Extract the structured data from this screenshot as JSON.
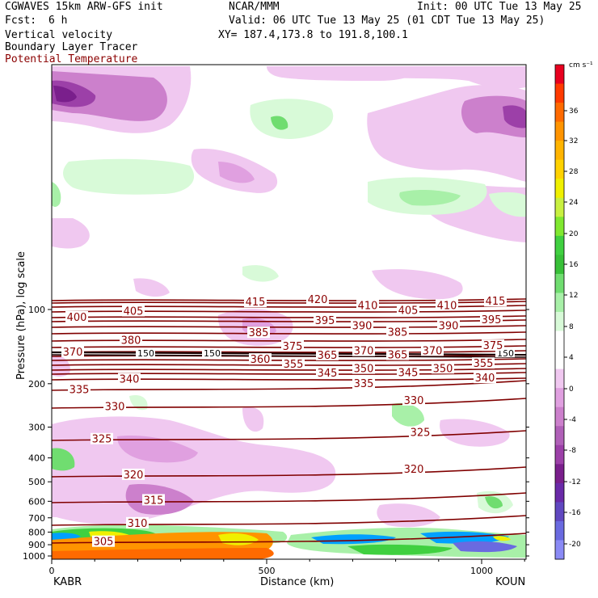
{
  "header": {
    "model": "CGWAVES 15km ARW-GFS init",
    "org": "NCAR/MMM",
    "init": "Init: 00 UTC Tue 13 May 25",
    "fcst_label": "Fcst:",
    "fcst_value": "6 h",
    "valid": "Valid: 06 UTC Tue 13 May 25 (01 CDT Tue 13 May 25)",
    "field1": "Vertical velocity",
    "field2": "Boundary Layer Tracer",
    "field3": "Potential Temperature",
    "xy": "XY= 187.4,173.8 to 191.8,100.1"
  },
  "colors": {
    "theta": "#800000",
    "dark_theta": "#1a0000"
  },
  "chart_data": {
    "type": "contour-cross-section",
    "ylabel": "Pressure (hPa), log scale",
    "xlabel": "Distance (km)",
    "x_ticks": [
      0,
      500,
      1000
    ],
    "xlim": [
      0,
      1110
    ],
    "y_ticks": [
      100,
      200,
      300,
      400,
      500,
      600,
      700,
      800,
      900,
      1000
    ],
    "y_scale": "log",
    "left_station": "KABR",
    "right_station": "KOUN",
    "colorbar": {
      "unit": "cm s⁻¹",
      "labels": [
        "36",
        "32",
        "28",
        "24",
        "20",
        "16",
        "12",
        "8",
        "4",
        "0",
        "-4",
        "-8",
        "-12",
        "-16",
        "-20"
      ],
      "colors": [
        "#e8001f",
        "#ff3a00",
        "#ff6a00",
        "#ff9400",
        "#ffb400",
        "#ffd200",
        "#f0f000",
        "#c8f040",
        "#80e830",
        "#40d040",
        "#38c038",
        "#70dd70",
        "#a8f0a8",
        "#d8fad8",
        "#ffffff",
        "#ffffff",
        "#f0c8f0",
        "#e0a0e0",
        "#cc80cc",
        "#b060b8",
        "#9c40a8",
        "#7a1f8c",
        "#6a2aa8",
        "#6048c0",
        "#6a6ae0",
        "#8a8af5"
      ]
    },
    "theta_contours": [
      {
        "level": 305,
        "y": 672
      },
      {
        "level": 310,
        "y": 650
      },
      {
        "level": 315,
        "y": 622
      },
      {
        "level": 320,
        "y": 590
      },
      {
        "level": 325,
        "y": 545
      },
      {
        "level": 330,
        "y": 505
      },
      {
        "level": 335,
        "y": 483
      },
      {
        "level": 340,
        "y": 470
      },
      {
        "level": 345,
        "y": 463
      },
      {
        "level": 350,
        "y": 458
      },
      {
        "level": 355,
        "y": 452
      },
      {
        "level": 360,
        "y": 446
      },
      {
        "level": 365,
        "y": 441
      },
      {
        "level": 370,
        "y": 436
      },
      {
        "level": 375,
        "y": 430
      },
      {
        "level": 380,
        "y": 422
      },
      {
        "level": 385,
        "y": 413
      },
      {
        "level": 390,
        "y": 405
      },
      {
        "level": 395,
        "y": 398
      },
      {
        "level": 400,
        "y": 393
      },
      {
        "level": 405,
        "y": 386
      },
      {
        "level": 410,
        "y": 380
      },
      {
        "level": 415,
        "y": 375
      },
      {
        "level": 420,
        "y": 372
      }
    ],
    "tracer_label": "150"
  }
}
